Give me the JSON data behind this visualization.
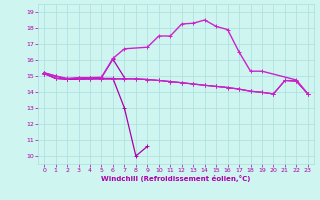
{
  "xlabel": "Windchill (Refroidissement éolien,°C)",
  "ylim": [
    9.5,
    19.5
  ],
  "xlim": [
    -0.5,
    23.5
  ],
  "yticks": [
    10,
    11,
    12,
    13,
    14,
    15,
    16,
    17,
    18,
    19
  ],
  "xticks": [
    0,
    1,
    2,
    3,
    4,
    5,
    6,
    7,
    8,
    9,
    10,
    11,
    12,
    13,
    14,
    15,
    16,
    17,
    18,
    19,
    20,
    21,
    22,
    23
  ],
  "bg_color": "#cff5f0",
  "grid_color": "#aadddd",
  "lc_dark": "#aa00aa",
  "lc_bright": "#cc22cc",
  "line_dip": [
    15.2,
    15.0,
    14.8,
    14.8,
    14.85,
    14.85,
    14.85,
    13.0,
    10.0,
    10.6,
    null,
    null,
    null,
    null,
    null,
    null,
    null,
    null,
    null,
    null,
    null,
    null,
    null,
    null
  ],
  "line_flat": [
    15.15,
    14.85,
    14.8,
    14.8,
    14.82,
    14.82,
    14.82,
    14.82,
    14.82,
    14.78,
    14.72,
    14.65,
    14.58,
    14.5,
    14.42,
    14.35,
    14.28,
    14.18,
    14.05,
    13.98,
    13.88,
    14.72,
    14.68,
    13.88
  ],
  "line_mid": [
    15.15,
    14.85,
    14.82,
    14.82,
    14.82,
    14.82,
    14.82,
    14.82,
    14.82,
    14.78,
    14.72,
    14.65,
    14.58,
    14.5,
    14.42,
    14.35,
    14.28,
    14.18,
    14.05,
    13.98,
    13.88,
    14.72,
    14.68,
    13.88
  ],
  "line_peak": [
    15.2,
    15.0,
    14.85,
    14.9,
    14.9,
    14.92,
    16.1,
    16.7,
    null,
    16.8,
    17.5,
    17.5,
    18.25,
    18.3,
    18.5,
    18.1,
    17.9,
    16.5,
    15.3,
    15.3,
    null,
    null,
    14.75,
    13.88
  ],
  "line_rise": [
    15.2,
    14.85,
    14.82,
    14.85,
    14.85,
    14.9,
    16.05,
    14.9,
    null,
    null,
    null,
    null,
    null,
    null,
    null,
    null,
    null,
    null,
    null,
    null,
    null,
    null,
    null,
    null
  ]
}
